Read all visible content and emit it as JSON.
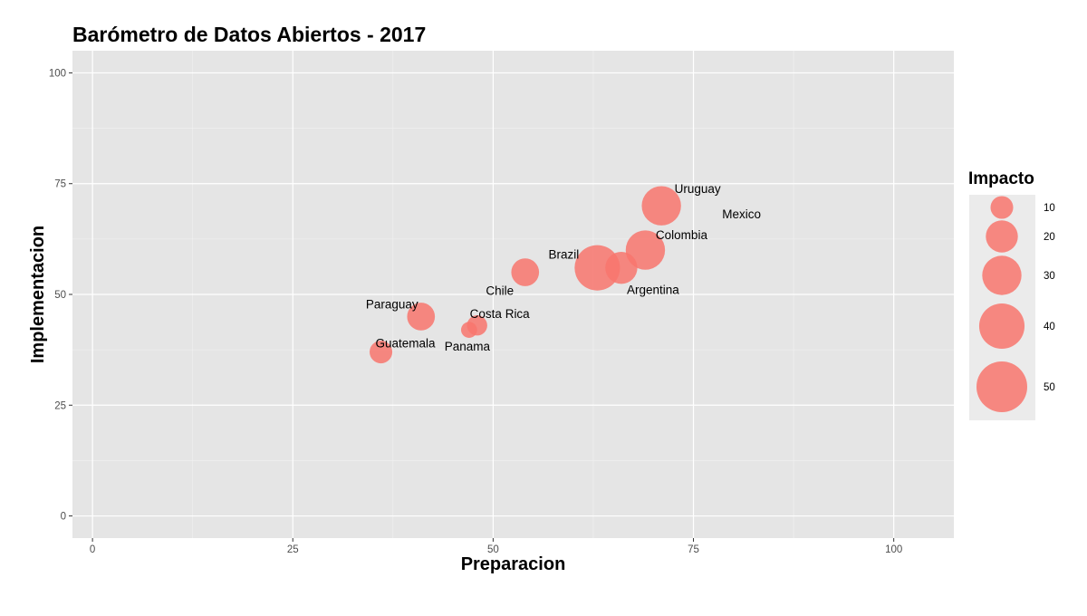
{
  "chart_data": {
    "type": "scatter",
    "title": "Barómetro de Datos Abiertos - 2017",
    "xlabel": "Preparacion",
    "ylabel": "Implementacion",
    "xlim": [
      -2.5,
      107.5
    ],
    "ylim": [
      -5,
      105
    ],
    "xticks": [
      0,
      25,
      50,
      75,
      100
    ],
    "yticks": [
      0,
      25,
      50,
      75,
      100
    ],
    "grid": true,
    "legend": {
      "title": "Impacto",
      "position": "right",
      "values": [
        10,
        20,
        30,
        40,
        50
      ]
    },
    "point_color": "#f8766d",
    "panel_background": "#e5e5e5",
    "points": [
      {
        "label": "Uruguay",
        "x": 71,
        "y": 70,
        "size": 30
      },
      {
        "label": "Mexico",
        "x": 81,
        "y": 68,
        "size": 0
      },
      {
        "label": "Colombia",
        "x": 69,
        "y": 60,
        "size": 30
      },
      {
        "label": "Brazil",
        "x": 63,
        "y": 56,
        "size": 40
      },
      {
        "label": "Argentina",
        "x": 66,
        "y": 56,
        "size": 20
      },
      {
        "label": "Chile",
        "x": 54,
        "y": 55,
        "size": 15
      },
      {
        "label": "Paraguay",
        "x": 41,
        "y": 45,
        "size": 15
      },
      {
        "label": "Costa Rica",
        "x": 48,
        "y": 43,
        "size": 8
      },
      {
        "label": "Panama",
        "x": 47,
        "y": 42,
        "size": 5
      },
      {
        "label": "Guatemala",
        "x": 36,
        "y": 37,
        "size": 10
      }
    ]
  }
}
